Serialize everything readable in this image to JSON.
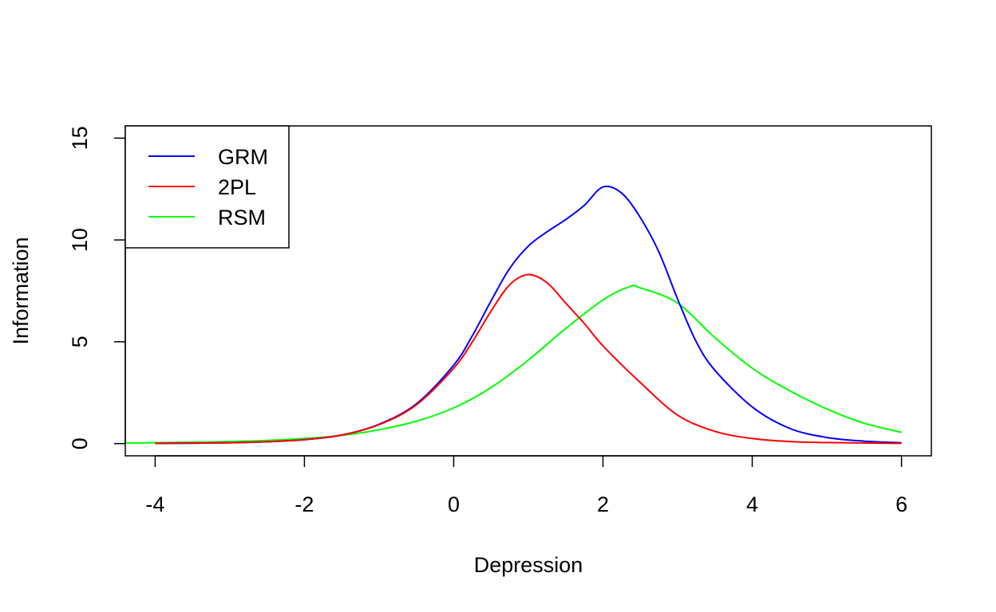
{
  "chart_data": {
    "type": "line",
    "title": "",
    "xlabel": "Depression",
    "ylabel": "Information",
    "xlim": [
      -4.4,
      6.4
    ],
    "ylim": [
      -0.6,
      15.6
    ],
    "x_ticks": [
      -4,
      -2,
      0,
      2,
      4,
      6
    ],
    "x_tick_labels": [
      "-4",
      "-2",
      "0",
      "2",
      "4",
      "6"
    ],
    "y_ticks": [
      0,
      5,
      10,
      15
    ],
    "y_tick_labels": [
      "0",
      "5",
      "10",
      "15"
    ],
    "grid": false,
    "legend_position": "top-left",
    "series": [
      {
        "name": "GRM",
        "color": "#0000ff",
        "points": [
          [
            -4.0,
            0.01
          ],
          [
            -3.0,
            0.04
          ],
          [
            -2.5,
            0.09
          ],
          [
            -2.0,
            0.19
          ],
          [
            -1.5,
            0.42
          ],
          [
            -1.0,
            0.95
          ],
          [
            -0.5,
            1.95
          ],
          [
            0.0,
            3.85
          ],
          [
            0.25,
            5.3
          ],
          [
            0.5,
            7.0
          ],
          [
            0.75,
            8.6
          ],
          [
            1.0,
            9.7
          ],
          [
            1.25,
            10.4
          ],
          [
            1.5,
            11.0
          ],
          [
            1.75,
            11.7
          ],
          [
            2.0,
            12.6
          ],
          [
            2.25,
            12.3
          ],
          [
            2.5,
            11.1
          ],
          [
            2.75,
            9.4
          ],
          [
            3.0,
            7.1
          ],
          [
            3.25,
            5.0
          ],
          [
            3.5,
            3.6
          ],
          [
            4.0,
            1.8
          ],
          [
            4.5,
            0.75
          ],
          [
            5.0,
            0.3
          ],
          [
            5.5,
            0.12
          ],
          [
            6.0,
            0.04
          ]
        ]
      },
      {
        "name": "2PL",
        "color": "#ff0000",
        "points": [
          [
            -4.0,
            0.01
          ],
          [
            -3.0,
            0.04
          ],
          [
            -2.5,
            0.09
          ],
          [
            -2.0,
            0.19
          ],
          [
            -1.5,
            0.42
          ],
          [
            -1.0,
            0.93
          ],
          [
            -0.5,
            1.9
          ],
          [
            0.0,
            3.7
          ],
          [
            0.25,
            5.0
          ],
          [
            0.5,
            6.5
          ],
          [
            0.75,
            7.8
          ],
          [
            1.0,
            8.3
          ],
          [
            1.25,
            7.9
          ],
          [
            1.5,
            6.9
          ],
          [
            1.75,
            5.9
          ],
          [
            2.0,
            4.8
          ],
          [
            2.5,
            3.0
          ],
          [
            3.0,
            1.4
          ],
          [
            3.5,
            0.6
          ],
          [
            4.0,
            0.25
          ],
          [
            4.5,
            0.1
          ],
          [
            5.0,
            0.05
          ],
          [
            6.0,
            0.01
          ]
        ]
      },
      {
        "name": "RSM",
        "color": "#00ff00",
        "points": [
          [
            -4.4,
            0.03
          ],
          [
            -4.0,
            0.04
          ],
          [
            -3.0,
            0.1
          ],
          [
            -2.5,
            0.15
          ],
          [
            -2.0,
            0.25
          ],
          [
            -1.5,
            0.4
          ],
          [
            -1.0,
            0.68
          ],
          [
            -0.5,
            1.1
          ],
          [
            0.0,
            1.75
          ],
          [
            0.5,
            2.75
          ],
          [
            1.0,
            4.1
          ],
          [
            1.5,
            5.65
          ],
          [
            2.0,
            7.05
          ],
          [
            2.35,
            7.7
          ],
          [
            2.5,
            7.65
          ],
          [
            3.0,
            6.9
          ],
          [
            3.5,
            5.2
          ],
          [
            4.0,
            3.7
          ],
          [
            4.5,
            2.6
          ],
          [
            5.0,
            1.7
          ],
          [
            5.5,
            1.0
          ],
          [
            6.0,
            0.55
          ]
        ]
      }
    ]
  }
}
